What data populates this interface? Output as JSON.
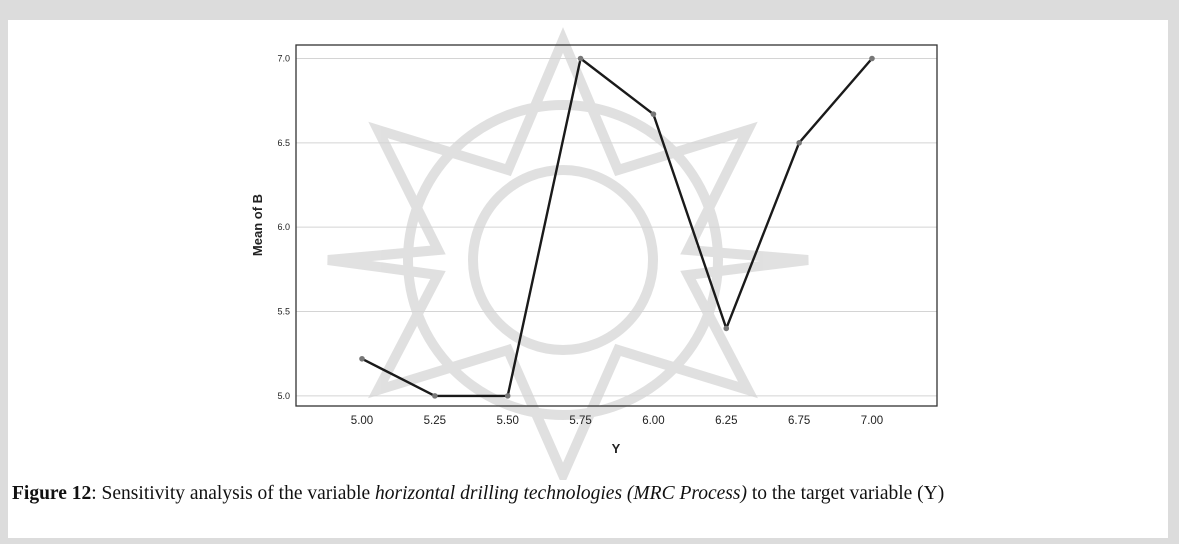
{
  "chart_data": {
    "type": "line",
    "xlabel": "Y",
    "ylabel": "Mean of B",
    "x_categories": [
      "5.00",
      "5.25",
      "5.50",
      "5.75",
      "6.00",
      "6.25",
      "6.75",
      "7.00"
    ],
    "values": [
      5.22,
      5.0,
      5.0,
      7.0,
      6.67,
      5.4,
      6.5,
      7.0
    ],
    "yticks": [
      "5.0",
      "5.5",
      "6.0",
      "6.5",
      "7.0"
    ],
    "ylim": [
      4.94,
      7.08
    ],
    "grid": "horizontal",
    "legend": "none",
    "colors": {
      "line": "#1a1a1a",
      "marker": "#777777",
      "grid": "#d4d4d4",
      "frame": "#333333"
    }
  },
  "caption": {
    "label": "Figure 12",
    "text_a": ": Sensitivity analysis of the variable ",
    "text_italic": "horizontal drilling technologies (MRC Process)",
    "text_b": " to the target variable (Y)"
  }
}
